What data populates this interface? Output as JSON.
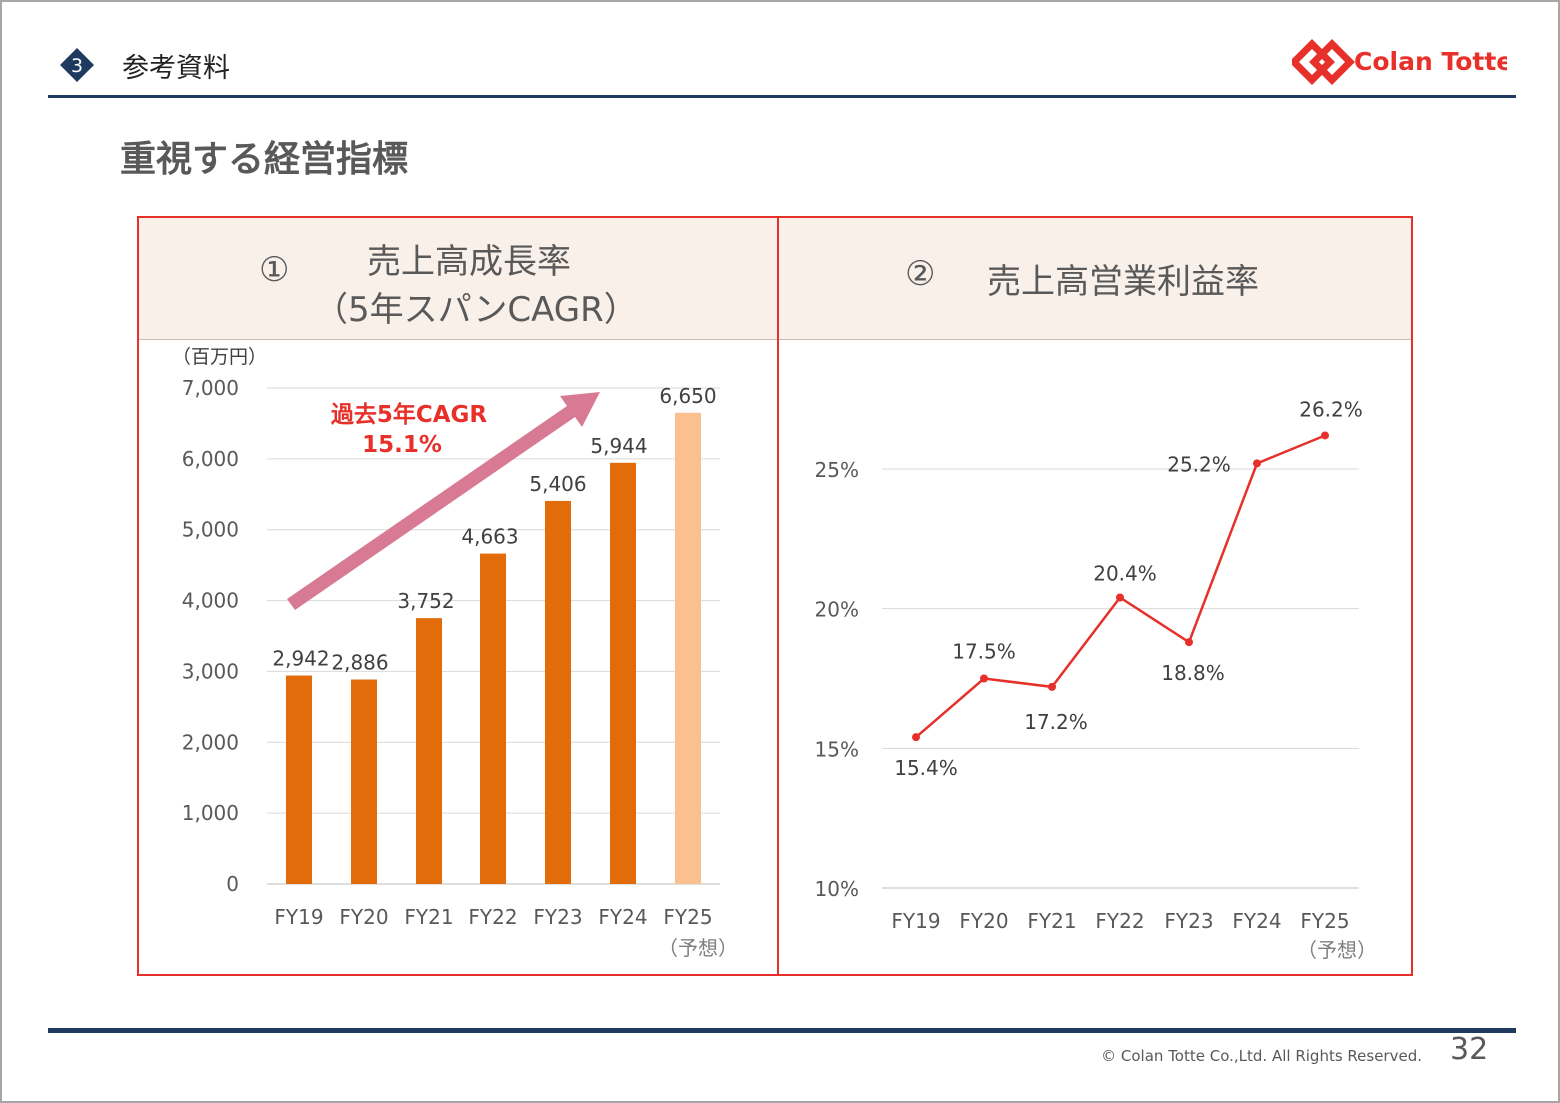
{
  "header": {
    "section_number": "3",
    "section_title": "参考資料",
    "page_title": "重視する経営指標",
    "logo_text": "Colan Totte"
  },
  "panels": [
    {
      "number": "①",
      "title_line1": "売上高成長率",
      "title_line2": "（5年スパンCAGR）"
    },
    {
      "number": "②",
      "title": "売上高営業利益率"
    }
  ],
  "footer": {
    "copyright": "© Colan Totte Co.,Ltd. All Rights Reserved.",
    "page_number": "32"
  },
  "colors": {
    "bar": "#e36c0a",
    "bar_forecast": "#fac090",
    "line": "#e8302a",
    "arrow": "#d87a93",
    "accent": "#e8302a",
    "navy": "#1f3a5f"
  },
  "chart_data": [
    {
      "type": "bar",
      "title": "売上高成長率",
      "ylabel": "（百万円）",
      "categories": [
        "FY19",
        "FY20",
        "FY21",
        "FY22",
        "FY23",
        "FY24",
        "FY25"
      ],
      "forecast_label": "（予想）",
      "values": [
        2942,
        2886,
        3752,
        4663,
        5406,
        5944,
        6650
      ],
      "value_labels": [
        "2,942",
        "2,886",
        "3,752",
        "4,663",
        "5,406",
        "5,944",
        "6,650"
      ],
      "ylim": [
        0,
        7000
      ],
      "yticks": [
        0,
        1000,
        2000,
        3000,
        4000,
        5000,
        6000,
        7000
      ],
      "ytick_labels": [
        "0",
        "1,000",
        "2,000",
        "3,000",
        "4,000",
        "5,000",
        "6,000",
        "7,000"
      ],
      "annotation": {
        "line1": "過去5年CAGR",
        "line2": "15.1%"
      },
      "grid": true
    },
    {
      "type": "line",
      "title": "売上高営業利益率",
      "categories": [
        "FY19",
        "FY20",
        "FY21",
        "FY22",
        "FY23",
        "FY24",
        "FY25"
      ],
      "forecast_label": "（予想）",
      "values": [
        15.4,
        17.5,
        17.2,
        20.4,
        18.8,
        25.2,
        26.2
      ],
      "value_labels": [
        "15.4%",
        "17.5%",
        "17.2%",
        "20.4%",
        "18.8%",
        "25.2%",
        "26.2%"
      ],
      "ylim": [
        10,
        27
      ],
      "yticks": [
        10,
        15,
        20,
        25
      ],
      "ytick_labels": [
        "10%",
        "15%",
        "20%",
        "25%"
      ],
      "grid": true
    }
  ]
}
